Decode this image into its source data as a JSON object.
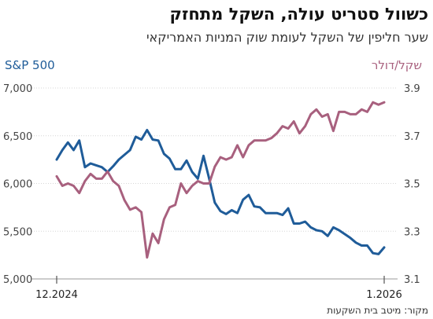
{
  "chart_data": {
    "type": "line",
    "title": "כשוול סטריט עולה, השקל מתחזק",
    "subtitle": "שער חליפין של השקל לעומת שוק המניות האמריקאי",
    "source": "מקור: מיטב בית השקעות",
    "x_labels": [
      "12.2024",
      "1.2026"
    ],
    "left_axis": {
      "label": "S&P 500",
      "ticks": [
        "5,000",
        "5,500",
        "6,000",
        "6,500",
        "7,000"
      ],
      "ylim": [
        5000,
        7000
      ]
    },
    "right_axis": {
      "label": "שקל/דולר",
      "ticks": [
        "3.1",
        "3.3",
        "3.5",
        "3.7",
        "3.9"
      ],
      "ylim": [
        3.1,
        3.9
      ]
    },
    "colors": {
      "sp500": "#1f5c99",
      "shekel": "#a8607e",
      "axis": "#999999"
    },
    "series": [
      {
        "axis": "left",
        "values": [
          6250,
          6350,
          6430,
          6350,
          6450,
          6170,
          6210,
          6190,
          6170,
          6120,
          6180,
          6250,
          6300,
          6350,
          6490,
          6460,
          6560,
          6460,
          6450,
          6310,
          6260,
          6150,
          6150,
          6240,
          6120,
          6050,
          6290,
          6050,
          5800,
          5710,
          5680,
          5720,
          5690,
          5830,
          5880,
          5760,
          5750,
          5690,
          5690,
          5690,
          5670,
          5740,
          5580,
          5580,
          5600,
          5540,
          5510,
          5500,
          5450,
          5540,
          5510,
          5470,
          5430,
          5380,
          5350,
          5350,
          5270,
          5260,
          5330
        ]
      },
      {
        "axis": "right",
        "values": [
          3.53,
          3.49,
          3.5,
          3.49,
          3.46,
          3.51,
          3.54,
          3.52,
          3.52,
          3.55,
          3.51,
          3.49,
          3.43,
          3.39,
          3.4,
          3.38,
          3.19,
          3.29,
          3.25,
          3.35,
          3.4,
          3.41,
          3.5,
          3.46,
          3.49,
          3.51,
          3.5,
          3.5,
          3.57,
          3.61,
          3.6,
          3.61,
          3.66,
          3.61,
          3.66,
          3.68,
          3.68,
          3.68,
          3.69,
          3.71,
          3.74,
          3.73,
          3.76,
          3.71,
          3.74,
          3.79,
          3.81,
          3.78,
          3.79,
          3.72,
          3.8,
          3.8,
          3.79,
          3.79,
          3.81,
          3.8,
          3.84,
          3.83,
          3.84
        ]
      }
    ]
  }
}
